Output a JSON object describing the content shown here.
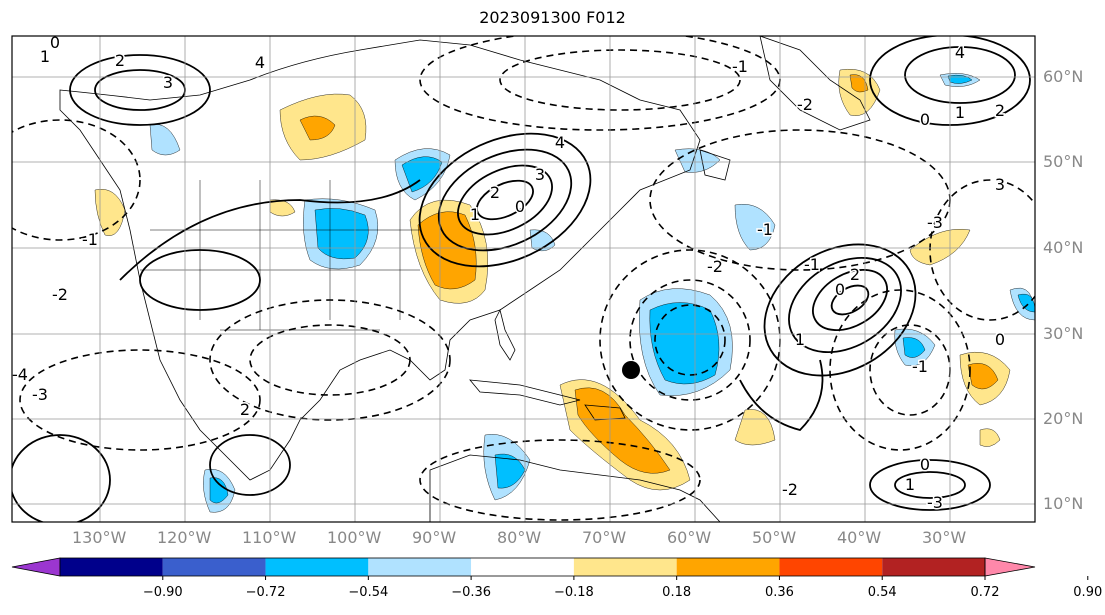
{
  "title": "2023091300 F012",
  "lat_labels": [
    "60°N",
    "50°N",
    "40°N",
    "30°N",
    "20°N",
    "10°N"
  ],
  "lon_labels": [
    "130°W",
    "120°W",
    "110°W",
    "100°W",
    "90°W",
    "80°W",
    "70°W",
    "60°W",
    "50°W",
    "40°W",
    "30°W"
  ],
  "colorbar": {
    "ticks": [
      "−0.90",
      "−0.72",
      "−0.54",
      "−0.36",
      "−0.18",
      "0.18",
      "0.36",
      "0.54",
      "0.72",
      "0.90"
    ],
    "colors": [
      "#9b36d0",
      "#00008b",
      "#3a5fcd",
      "#00bfff",
      "#b0e2ff",
      "#ffffff",
      "#ffe68c",
      "#ffa500",
      "#ff4500",
      "#b22222",
      "#ff88aa"
    ]
  },
  "contour_labels": [
    "0",
    "1",
    "2",
    "3",
    "4",
    "-1",
    "-2",
    "-3",
    "-4",
    "0",
    "1",
    "2",
    "3",
    "4",
    "-1",
    "-2",
    "-3",
    "-1",
    "0",
    "1",
    "2",
    "-2",
    "0",
    "-1",
    "3",
    "4",
    "2",
    "1",
    "0",
    "-1",
    "-2",
    "-3",
    "0",
    "1",
    "2"
  ],
  "colors": {
    "positive": "#ffa500",
    "positive_light": "#ffe68c",
    "negative": "#00bfff",
    "negative_light": "#b0e2ff"
  }
}
